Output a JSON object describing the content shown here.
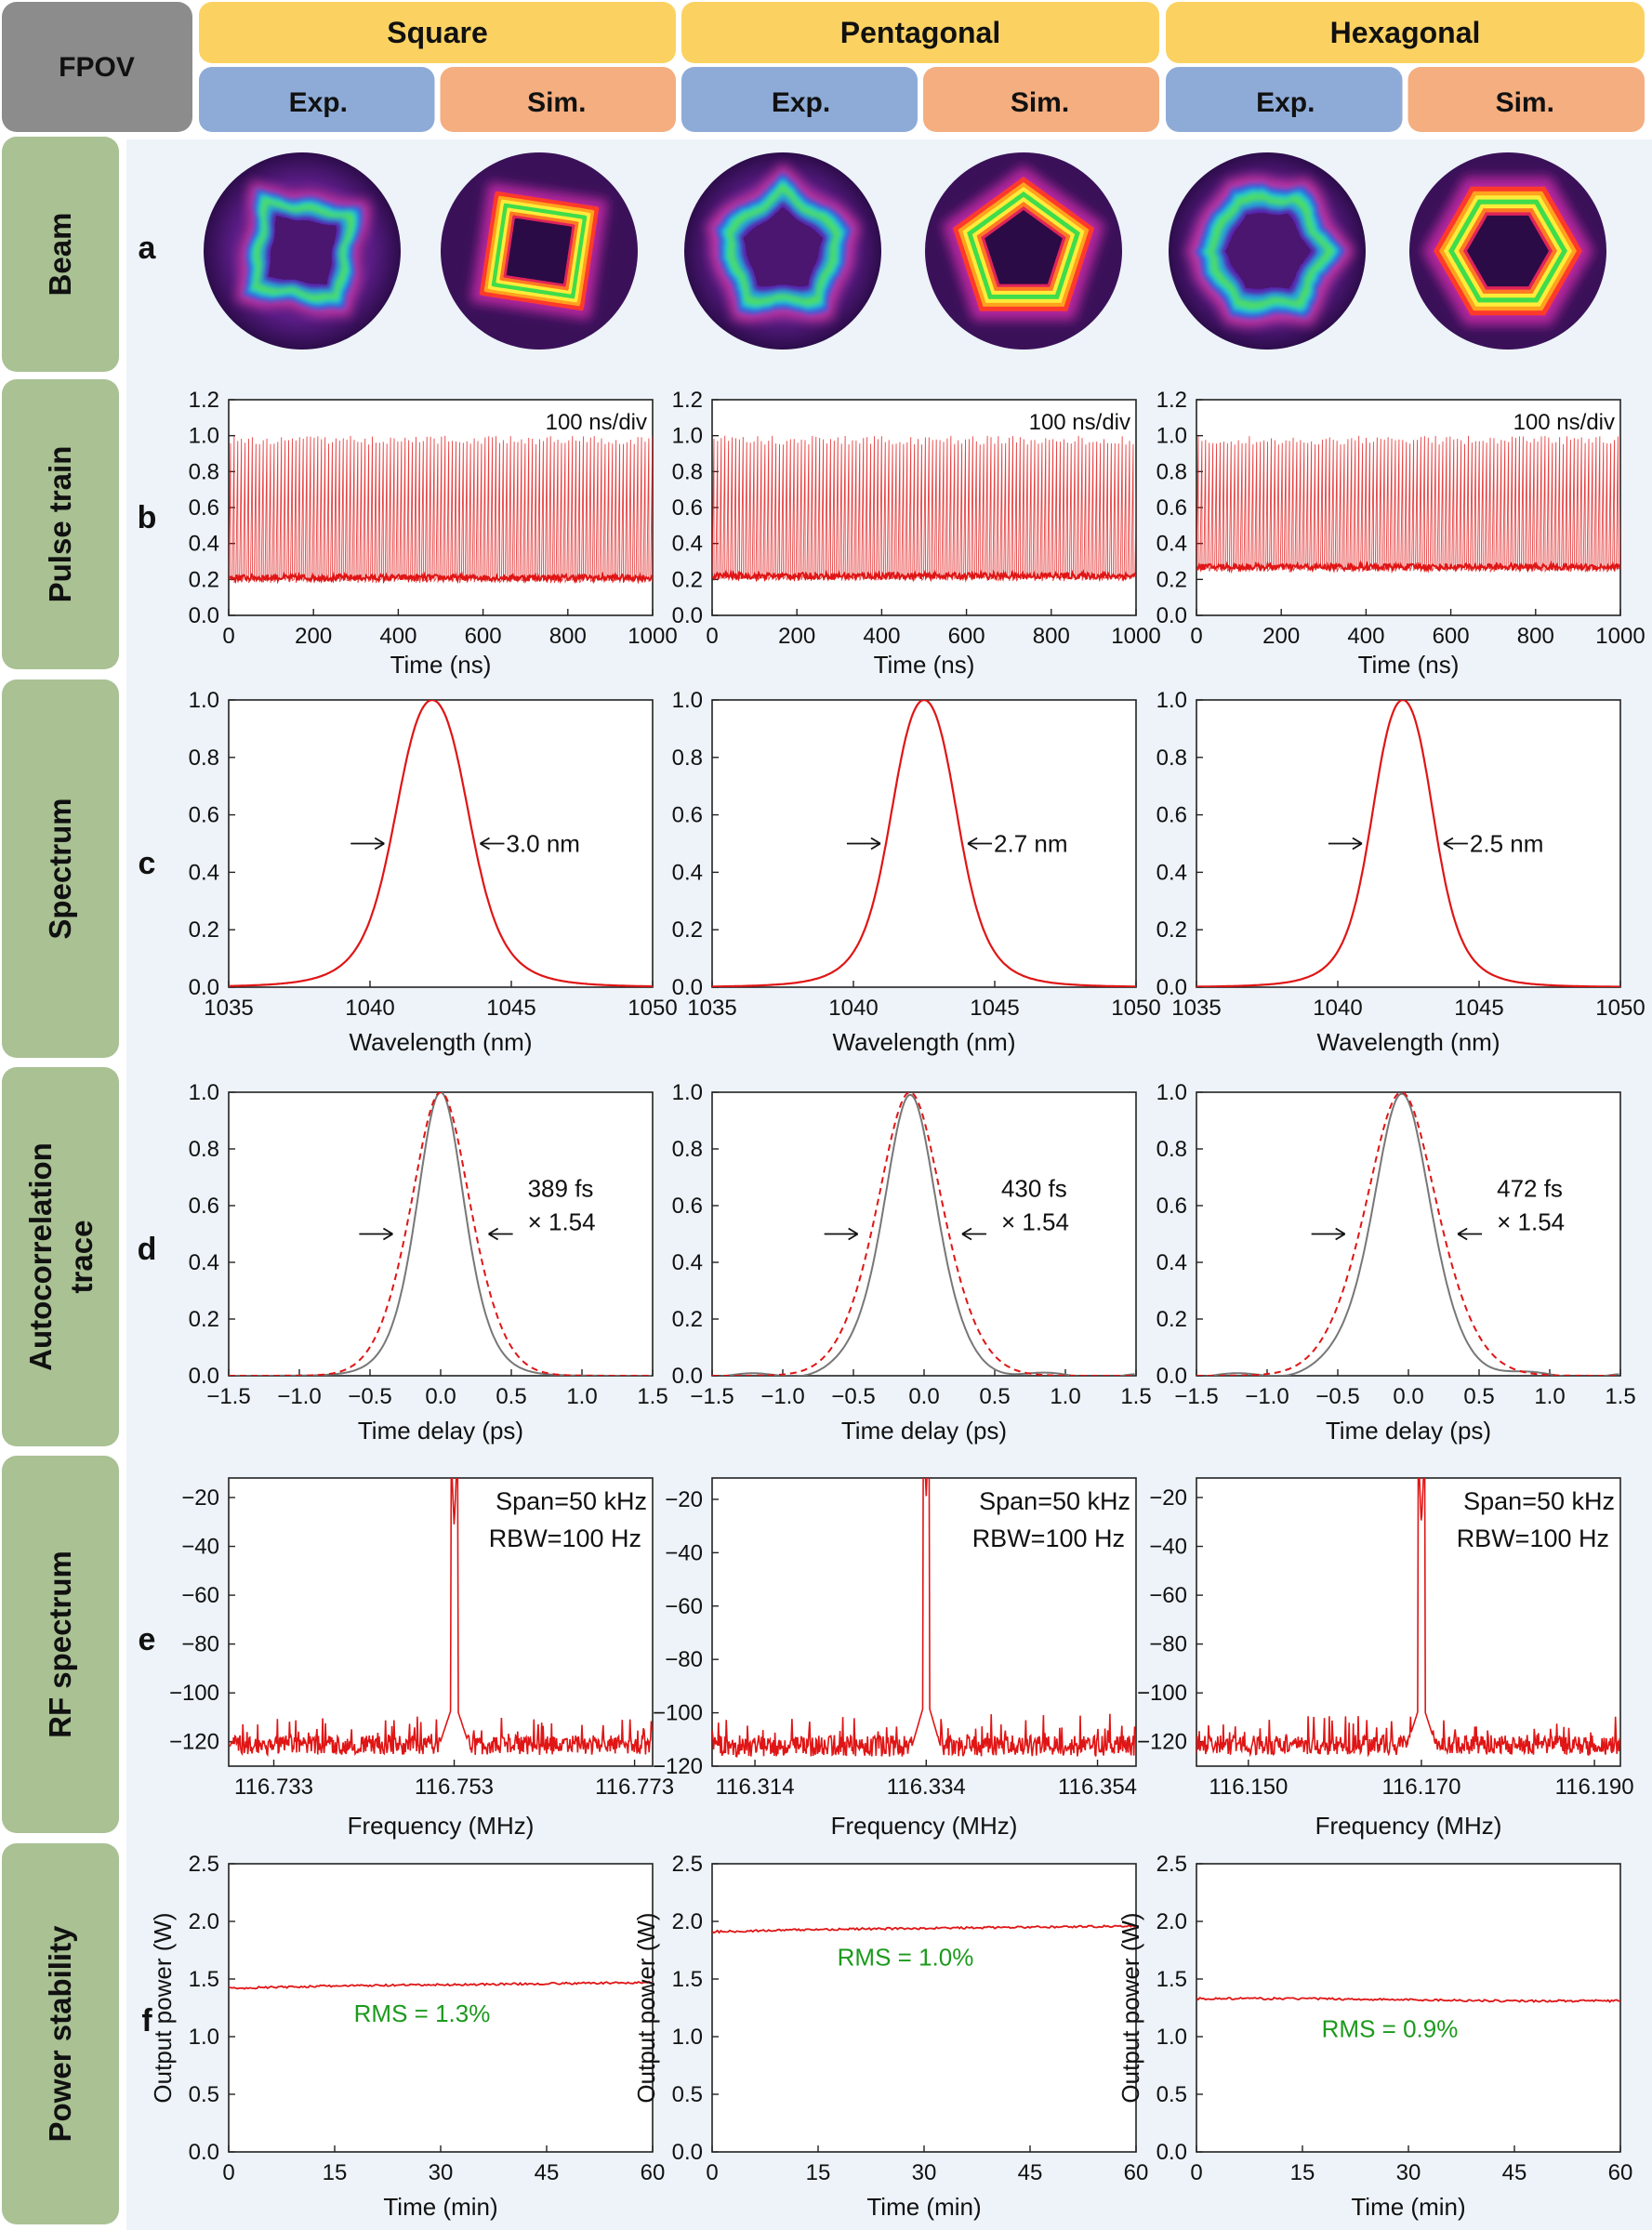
{
  "header": {
    "corner": "FPOV",
    "groups": [
      {
        "name": "Square",
        "sub": [
          "Exp.",
          "Sim."
        ]
      },
      {
        "name": "Pentagonal",
        "sub": [
          "Exp.",
          "Sim."
        ]
      },
      {
        "name": "Hexagonal",
        "sub": [
          "Exp.",
          "Sim."
        ]
      }
    ]
  },
  "rows": [
    {
      "label": [
        "Beam"
      ],
      "letter": "a"
    },
    {
      "label": [
        "Pulse train"
      ],
      "letter": "b"
    },
    {
      "label": [
        "Spectrum"
      ],
      "letter": "c"
    },
    {
      "label": [
        "Autocorrelation",
        "trace"
      ],
      "letter": "d"
    },
    {
      "label": [
        "RF spectrum"
      ],
      "letter": "e"
    },
    {
      "label": [
        "Power stability"
      ],
      "letter": "f"
    }
  ],
  "colors": {
    "header_group": "#fbd262",
    "header_exp": "#8eabd8",
    "header_sim": "#f4ae80",
    "corner": "#8c8c8c",
    "row_label": "#a9c193",
    "panel_bg": "#edf3f9",
    "trace": "#e01515",
    "fit": "#777777",
    "rms_text": "#1c9a1c"
  },
  "beams": [
    {
      "column": "Square",
      "type": "Exp.",
      "shape": 4
    },
    {
      "column": "Square",
      "type": "Sim.",
      "shape": 4
    },
    {
      "column": "Pentagonal",
      "type": "Exp.",
      "shape": 5
    },
    {
      "column": "Pentagonal",
      "type": "Sim.",
      "shape": 5
    },
    {
      "column": "Hexagonal",
      "type": "Exp.",
      "shape": 6
    },
    {
      "column": "Hexagonal",
      "type": "Sim.",
      "shape": 6
    }
  ],
  "chart_data": [
    {
      "row": "b",
      "column": "Square",
      "type": "line",
      "xlabel": "Time (ns)",
      "ylabel": "",
      "xlim": [
        0,
        1000
      ],
      "ylim": [
        0,
        1.2
      ],
      "xticks": [
        0,
        200,
        400,
        600,
        800,
        1000
      ],
      "yticks": [
        0.0,
        0.2,
        0.4,
        0.6,
        0.8,
        1.0,
        1.2
      ],
      "annotation": "100 ns/div",
      "pulse_period_ns": 8.58,
      "pulse_peak": 1.0,
      "baseline": 0.21
    },
    {
      "row": "b",
      "column": "Pentagonal",
      "type": "line",
      "xlabel": "Time (ns)",
      "ylabel": "",
      "xlim": [
        0,
        1000
      ],
      "ylim": [
        0,
        1.2
      ],
      "xticks": [
        0,
        200,
        400,
        600,
        800,
        1000
      ],
      "yticks": [
        0.0,
        0.2,
        0.4,
        0.6,
        0.8,
        1.0,
        1.2
      ],
      "annotation": "100 ns/div",
      "pulse_period_ns": 8.6,
      "pulse_peak": 1.0,
      "baseline": 0.22
    },
    {
      "row": "b",
      "column": "Hexagonal",
      "type": "line",
      "xlabel": "Time (ns)",
      "ylabel": "",
      "xlim": [
        0,
        1000
      ],
      "ylim": [
        0,
        1.2
      ],
      "xticks": [
        0,
        200,
        400,
        600,
        800,
        1000
      ],
      "yticks": [
        0.0,
        0.2,
        0.4,
        0.6,
        0.8,
        1.0,
        1.2
      ],
      "annotation": "100 ns/div",
      "pulse_period_ns": 8.61,
      "pulse_peak": 1.0,
      "baseline": 0.27
    },
    {
      "row": "c",
      "column": "Square",
      "type": "line",
      "xlabel": "Wavelength (nm)",
      "ylabel": "",
      "xlim": [
        1035,
        1050
      ],
      "ylim": [
        0,
        1.0
      ],
      "xticks": [
        1035,
        1040,
        1045,
        1050
      ],
      "yticks": [
        0.0,
        0.2,
        0.4,
        0.6,
        0.8,
        1.0
      ],
      "annotation": "3.0 nm",
      "center_nm": 1042.2,
      "fwhm_nm": 3.0
    },
    {
      "row": "c",
      "column": "Pentagonal",
      "type": "line",
      "xlabel": "Wavelength (nm)",
      "ylabel": "",
      "xlim": [
        1035,
        1050
      ],
      "ylim": [
        0,
        1.0
      ],
      "xticks": [
        1035,
        1040,
        1045,
        1050
      ],
      "yticks": [
        0.0,
        0.2,
        0.4,
        0.6,
        0.8,
        1.0
      ],
      "annotation": "2.7 nm",
      "center_nm": 1042.5,
      "fwhm_nm": 2.7
    },
    {
      "row": "c",
      "column": "Hexagonal",
      "type": "line",
      "xlabel": "Wavelength (nm)",
      "ylabel": "",
      "xlim": [
        1035,
        1050
      ],
      "ylim": [
        0,
        1.0
      ],
      "xticks": [
        1035,
        1040,
        1045,
        1050
      ],
      "yticks": [
        0.0,
        0.2,
        0.4,
        0.6,
        0.8,
        1.0
      ],
      "annotation": "2.5 nm",
      "center_nm": 1042.3,
      "fwhm_nm": 2.5
    },
    {
      "row": "d",
      "column": "Square",
      "type": "line",
      "xlabel": "Time delay (ps)",
      "ylabel": "",
      "xlim": [
        -1.5,
        1.5
      ],
      "ylim": [
        0,
        1.0
      ],
      "xticks": [
        -1.5,
        -1.0,
        -0.5,
        0.0,
        0.5,
        1.0,
        1.5
      ],
      "xtick_labels": [
        "−1.5",
        "−1.0",
        "−0.5",
        "0.0",
        "0.5",
        "1.0",
        "1.5"
      ],
      "yticks": [
        0.0,
        0.2,
        0.4,
        0.6,
        0.8,
        1.0
      ],
      "annotation": [
        "389 fs",
        "× 1.54"
      ],
      "center_ps": 0.0,
      "fwhm_ps": 0.6
    },
    {
      "row": "d",
      "column": "Pentagonal",
      "type": "line",
      "xlabel": "Time delay (ps)",
      "ylabel": "",
      "xlim": [
        -1.5,
        1.5
      ],
      "ylim": [
        0,
        1.0
      ],
      "xticks": [
        -1.5,
        -1.0,
        -0.5,
        0.0,
        0.5,
        1.0,
        1.5
      ],
      "xtick_labels": [
        "−1.5",
        "−1.0",
        "−0.5",
        "0.0",
        "0.5",
        "1.0",
        "1.5"
      ],
      "yticks": [
        0.0,
        0.2,
        0.4,
        0.6,
        0.8,
        1.0
      ],
      "annotation": [
        "430 fs",
        "× 1.54"
      ],
      "center_ps": -0.1,
      "fwhm_ps": 0.66
    },
    {
      "row": "d",
      "column": "Hexagonal",
      "type": "line",
      "xlabel": "Time delay (ps)",
      "ylabel": "",
      "xlim": [
        -1.5,
        1.5
      ],
      "ylim": [
        0,
        1.0
      ],
      "xticks": [
        -1.5,
        -1.0,
        -0.5,
        0.0,
        0.5,
        1.0,
        1.5
      ],
      "xtick_labels": [
        "−1.5",
        "−1.0",
        "−0.5",
        "0.0",
        "0.5",
        "1.0",
        "1.5"
      ],
      "yticks": [
        0.0,
        0.2,
        0.4,
        0.6,
        0.8,
        1.0
      ],
      "annotation": [
        "472 fs",
        "× 1.54"
      ],
      "center_ps": -0.05,
      "fwhm_ps": 0.72
    },
    {
      "row": "e",
      "column": "Square",
      "type": "line",
      "xlabel": "Frequency (MHz)",
      "ylabel": "",
      "xlim": [
        116.728,
        116.775
      ],
      "ylim": [
        -130,
        -12
      ],
      "xticks": [
        116.733,
        116.753,
        116.773
      ],
      "xtick_labels": [
        "116.733",
        "116.753",
        "116.773"
      ],
      "yticks": [
        -120,
        -100,
        -80,
        -60,
        -40,
        -20
      ],
      "ytick_labels": [
        "−120",
        "−100",
        "−80",
        "−60",
        "−40",
        "−20"
      ],
      "annotation": [
        "Span=50 kHz",
        "RBW=100 Hz"
      ],
      "peak_mhz": 116.753,
      "peak_db": -32,
      "noise_floor_db": -123
    },
    {
      "row": "e",
      "column": "Pentagonal",
      "type": "line",
      "xlabel": "Frequency (MHz)",
      "ylabel": "",
      "xlim": [
        116.309,
        116.3585
      ],
      "ylim": [
        -120,
        -12
      ],
      "xticks": [
        116.314,
        116.334,
        116.354
      ],
      "xtick_labels": [
        "116.314",
        "116.334",
        "116.354"
      ],
      "yticks": [
        -120,
        -100,
        -80,
        -60,
        -40,
        -20
      ],
      "ytick_labels": [
        "−120",
        "−100",
        "−80",
        "−60",
        "−40",
        "−20"
      ],
      "annotation": [
        "Span=50 kHz",
        "RBW=100 Hz"
      ],
      "peak_mhz": 116.334,
      "peak_db": -19,
      "noise_floor_db": -114
    },
    {
      "row": "e",
      "column": "Hexagonal",
      "type": "line",
      "xlabel": "Frequency (MHz)",
      "ylabel": "",
      "xlim": [
        116.144,
        116.193
      ],
      "ylim": [
        -130,
        -12
      ],
      "xticks": [
        116.15,
        116.17,
        116.19
      ],
      "xtick_labels": [
        "116.150",
        "116.170",
        "116.190"
      ],
      "yticks": [
        -120,
        -100,
        -80,
        -60,
        -40,
        -20
      ],
      "ytick_labels": [
        "−120",
        "−100",
        "−80",
        "−60",
        "−40",
        "−20"
      ],
      "annotation": [
        "Span=50 kHz",
        "RBW=100 Hz"
      ],
      "peak_mhz": 116.17,
      "peak_db": -32,
      "noise_floor_db": -123
    },
    {
      "row": "f",
      "column": "Square",
      "type": "line",
      "xlabel": "Time (min)",
      "ylabel": "Output power (W)",
      "xlim": [
        0,
        60
      ],
      "ylim": [
        0,
        2.5
      ],
      "xticks": [
        0,
        15,
        30,
        45,
        60
      ],
      "yticks": [
        0.0,
        0.5,
        1.0,
        1.5,
        2.0,
        2.5
      ],
      "annotation": "RMS = 1.3%",
      "x": [
        0,
        15,
        30,
        45,
        60
      ],
      "y": [
        1.42,
        1.44,
        1.45,
        1.46,
        1.47
      ]
    },
    {
      "row": "f",
      "column": "Pentagonal",
      "type": "line",
      "xlabel": "Time (min)",
      "ylabel": "Output power (W)",
      "xlim": [
        0,
        60
      ],
      "ylim": [
        0,
        2.5
      ],
      "xticks": [
        0,
        15,
        30,
        45,
        60
      ],
      "yticks": [
        0.0,
        0.5,
        1.0,
        1.5,
        2.0,
        2.5
      ],
      "annotation": "RMS = 1.0%",
      "x": [
        0,
        15,
        30,
        45,
        60
      ],
      "y": [
        1.91,
        1.93,
        1.94,
        1.95,
        1.96
      ]
    },
    {
      "row": "f",
      "column": "Hexagonal",
      "type": "line",
      "xlabel": "Time (min)",
      "ylabel": "Output power (W)",
      "xlim": [
        0,
        60
      ],
      "ylim": [
        0,
        2.5
      ],
      "xticks": [
        0,
        15,
        30,
        45,
        60
      ],
      "yticks": [
        0.0,
        0.5,
        1.0,
        1.5,
        2.0,
        2.5
      ],
      "annotation": "RMS = 0.9%",
      "x": [
        0,
        15,
        30,
        45,
        60
      ],
      "y": [
        1.33,
        1.33,
        1.32,
        1.31,
        1.31
      ]
    }
  ]
}
